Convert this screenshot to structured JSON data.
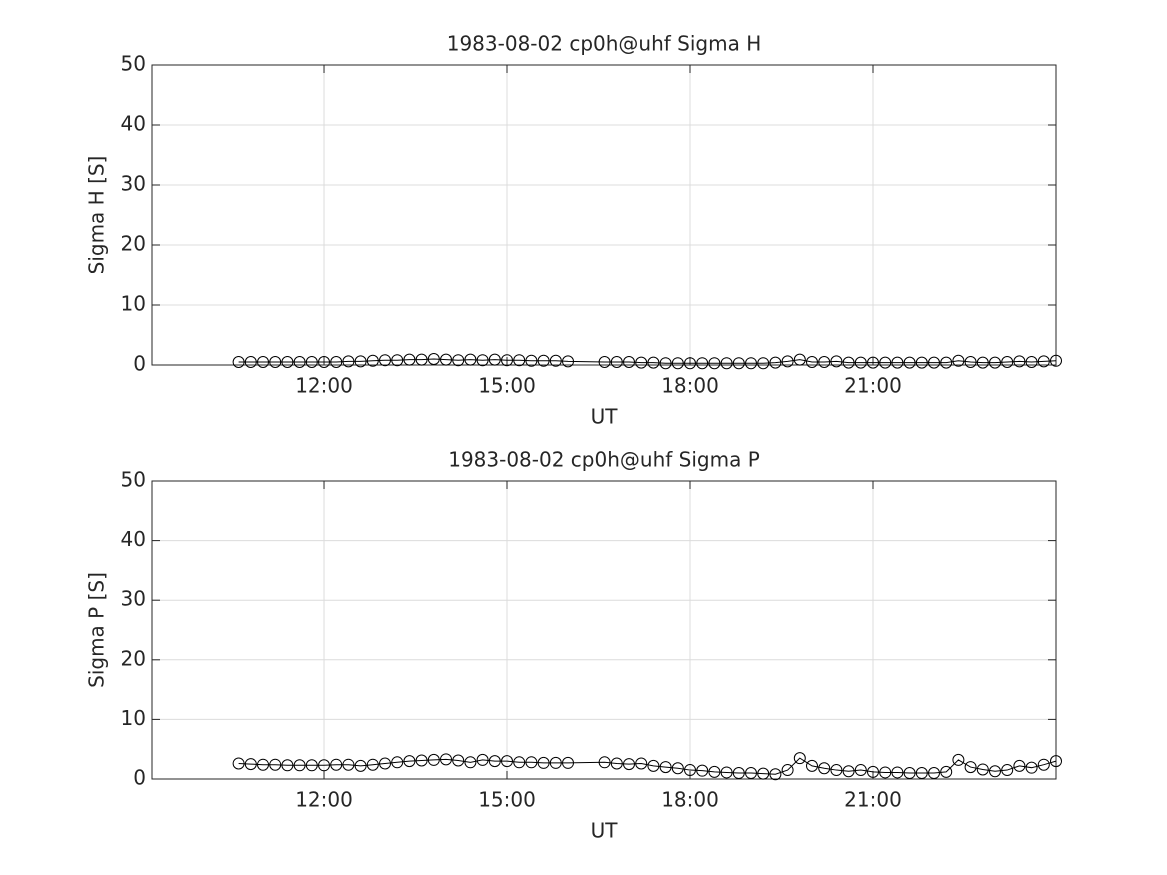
{
  "chart_data": [
    {
      "type": "line",
      "title": "1983-08-02  cp0h@uhf Sigma H",
      "xlabel": "UT",
      "ylabel": "Sigma H [S]",
      "x": [
        10.6,
        10.8,
        11,
        11.2,
        11.4,
        11.6,
        11.8,
        12,
        12.2,
        12.4,
        12.6,
        12.8,
        13,
        13.2,
        13.4,
        13.6,
        13.8,
        14,
        14.2,
        14.4,
        14.6,
        14.8,
        15,
        15.2,
        15.4,
        15.6,
        15.8,
        16,
        16.6,
        16.8,
        17,
        17.2,
        17.4,
        17.6,
        17.8,
        18,
        18.2,
        18.4,
        18.6,
        18.8,
        19,
        19.2,
        19.4,
        19.6,
        19.8,
        20,
        20.2,
        20.4,
        20.6,
        20.8,
        21,
        21.2,
        21.4,
        21.6,
        21.8,
        22,
        22.2,
        22.4,
        22.6,
        22.8,
        23,
        23.2,
        23.4,
        23.6,
        23.8,
        24
      ],
      "values": [
        0.5,
        0.5,
        0.5,
        0.5,
        0.5,
        0.5,
        0.5,
        0.5,
        0.5,
        0.6,
        0.6,
        0.7,
        0.8,
        0.8,
        0.9,
        0.9,
        1.0,
        0.9,
        0.8,
        0.9,
        0.8,
        0.9,
        0.8,
        0.8,
        0.7,
        0.7,
        0.7,
        0.6,
        0.5,
        0.5,
        0.5,
        0.4,
        0.4,
        0.3,
        0.3,
        0.3,
        0.3,
        0.3,
        0.3,
        0.3,
        0.3,
        0.3,
        0.4,
        0.6,
        0.9,
        0.5,
        0.5,
        0.6,
        0.4,
        0.4,
        0.4,
        0.4,
        0.4,
        0.4,
        0.4,
        0.4,
        0.4,
        0.7,
        0.5,
        0.4,
        0.4,
        0.5,
        0.6,
        0.5,
        0.6,
        0.7
      ],
      "color": "#000000",
      "marker": "circle",
      "grid": true,
      "xlim": [
        9.18,
        24
      ],
      "xticks": [
        {
          "value": 12,
          "label": "12:00"
        },
        {
          "value": 15,
          "label": "15:00"
        },
        {
          "value": 18,
          "label": "18:00"
        },
        {
          "value": 21,
          "label": "21:00"
        }
      ],
      "ylim": [
        0,
        50
      ],
      "yticks": [
        0,
        10,
        20,
        30,
        40,
        50
      ]
    },
    {
      "type": "line",
      "title": "1983-08-02  cp0h@uhf Sigma P",
      "xlabel": "UT",
      "ylabel": "Sigma P [S]",
      "x": [
        10.6,
        10.8,
        11,
        11.2,
        11.4,
        11.6,
        11.8,
        12,
        12.2,
        12.4,
        12.6,
        12.8,
        13,
        13.2,
        13.4,
        13.6,
        13.8,
        14,
        14.2,
        14.4,
        14.6,
        14.8,
        15,
        15.2,
        15.4,
        15.6,
        15.8,
        16,
        16.6,
        16.8,
        17,
        17.2,
        17.4,
        17.6,
        17.8,
        18,
        18.2,
        18.4,
        18.6,
        18.8,
        19,
        19.2,
        19.4,
        19.6,
        19.8,
        20,
        20.2,
        20.4,
        20.6,
        20.8,
        21,
        21.2,
        21.4,
        21.6,
        21.8,
        22,
        22.2,
        22.4,
        22.6,
        22.8,
        23,
        23.2,
        23.4,
        23.6,
        23.8,
        24
      ],
      "values": [
        2.6,
        2.5,
        2.4,
        2.4,
        2.3,
        2.3,
        2.3,
        2.3,
        2.4,
        2.4,
        2.2,
        2.4,
        2.6,
        2.8,
        3.0,
        3.1,
        3.2,
        3.3,
        3.1,
        2.8,
        3.2,
        3.0,
        3.0,
        2.8,
        2.8,
        2.7,
        2.7,
        2.7,
        2.8,
        2.6,
        2.5,
        2.6,
        2.2,
        2.0,
        1.8,
        1.5,
        1.4,
        1.2,
        1.1,
        1.0,
        1.0,
        0.9,
        0.8,
        1.5,
        3.5,
        2.2,
        1.8,
        1.5,
        1.3,
        1.5,
        1.2,
        1.1,
        1.1,
        1.0,
        1.0,
        1.0,
        1.2,
        3.2,
        2.0,
        1.6,
        1.3,
        1.5,
        2.2,
        1.9,
        2.4,
        3.0
      ],
      "color": "#000000",
      "marker": "circle",
      "grid": true,
      "xlim": [
        9.18,
        24
      ],
      "xticks": [
        {
          "value": 12,
          "label": "12:00"
        },
        {
          "value": 15,
          "label": "15:00"
        },
        {
          "value": 18,
          "label": "18:00"
        },
        {
          "value": 21,
          "label": "21:00"
        }
      ],
      "ylim": [
        0,
        50
      ],
      "yticks": [
        0,
        10,
        20,
        30,
        40,
        50
      ]
    }
  ]
}
